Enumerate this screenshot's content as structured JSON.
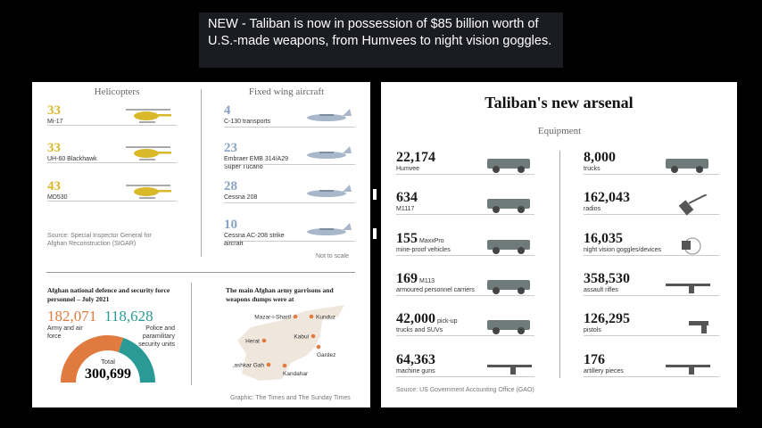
{
  "caption": "NEW - Taliban is now in possession of $85 billion worth of U.S.-made weapons, from Humvees to night vision goggles.",
  "left": {
    "helicopters": {
      "title": "Helicopters",
      "color": "#d9b829",
      "items": [
        {
          "count": "33",
          "label": "Mi-17",
          "icon": "helicopter-icon"
        },
        {
          "count": "33",
          "label": "UH-60 Blackhawk",
          "icon": "helicopter-icon"
        },
        {
          "count": "43",
          "label": "MD530",
          "icon": "helicopter-icon"
        }
      ],
      "source": "Source: Special Inspector General for Afghan Reconstruction (SIGAR)"
    },
    "fixed_wing": {
      "title": "Fixed wing aircraft",
      "color": "#8aa3c0",
      "items": [
        {
          "count": "4",
          "label": "C-130 transports",
          "icon": "airplane-icon"
        },
        {
          "count": "23",
          "label": "Embraer EMB 314/A29 Super Tucano",
          "icon": "airplane-icon"
        },
        {
          "count": "28",
          "label": "Cessna 208",
          "icon": "airplane-icon"
        },
        {
          "count": "10",
          "label": "Cessna AC-208 strike aircraft",
          "icon": "airplane-icon"
        }
      ],
      "note": "Not to scale"
    },
    "personnel": {
      "title": "Afghan national defence and security force personnel – July 2021",
      "army": {
        "value": "182,071",
        "label": "Army and air force",
        "color": "#e07a3f",
        "number": 182071
      },
      "police": {
        "value": "118,628",
        "label": "Police and paramilitary security units",
        "color": "#2a9a96",
        "number": 118628
      },
      "total_label": "Total",
      "total": "300,699"
    },
    "map": {
      "title": "The main Afghan army garrisons and weapons dumps were at",
      "cities": [
        "Mazar-i-Sharif",
        "Kunduz",
        "Herat",
        "Kabul",
        "Gardez",
        "Lashkar Gah",
        "Kandahar"
      ]
    },
    "credit": "Graphic: The Times and The Sunday Times"
  },
  "right": {
    "title": "Taliban's new arsenal",
    "subtitle": "Equipment",
    "col1": [
      {
        "count": "22,174",
        "label": "Humvee",
        "icon": "humvee-icon"
      },
      {
        "count": "634",
        "label": "M1117",
        "icon": "armored-vehicle-icon"
      },
      {
        "count": "155",
        "inline": "MaxxPro",
        "label": "mine-proof vehicles",
        "icon": "mrap-icon"
      },
      {
        "count": "169",
        "inline": "M113",
        "label": "armoured personnel carriers",
        "icon": "apc-icon"
      },
      {
        "count": "42,000",
        "inline": "pick-up",
        "label": "trucks and SUVs",
        "icon": "pickup-icon"
      },
      {
        "count": "64,363",
        "label": "machine guns",
        "icon": "machine-gun-icon"
      }
    ],
    "col2": [
      {
        "count": "8,000",
        "label": "trucks",
        "icon": "truck-icon"
      },
      {
        "count": "162,043",
        "label": "radios",
        "icon": "radio-icon"
      },
      {
        "count": "16,035",
        "label": "night vision goggles/devices",
        "icon": "night-vision-icon"
      },
      {
        "count": "358,530",
        "label": "assault rifles",
        "icon": "rifle-icon"
      },
      {
        "count": "126,295",
        "label": "pistols",
        "icon": "pistol-icon"
      },
      {
        "count": "176",
        "label": "artillery pieces",
        "icon": "artillery-icon"
      }
    ],
    "source": "Source: US Government Accounting Office (GAO)"
  }
}
